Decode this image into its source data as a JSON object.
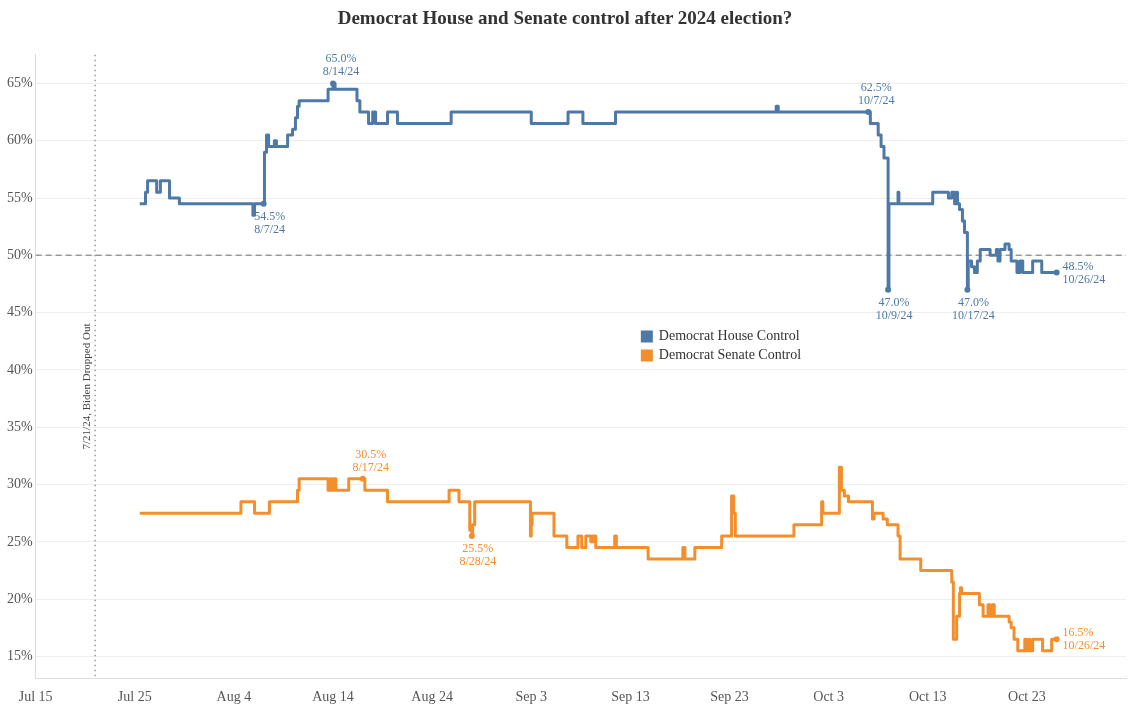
{
  "chart_data": {
    "type": "step",
    "title": "Democrat House and Senate control after 2024 election?",
    "xlim": [
      "2024-07-15",
      "2024-11-02"
    ],
    "xticks": [
      {
        "value": "2024-07-15",
        "label": "Jul 15"
      },
      {
        "value": "2024-07-25",
        "label": "Jul 25"
      },
      {
        "value": "2024-08-04",
        "label": "Aug 4"
      },
      {
        "value": "2024-08-14",
        "label": "Aug 14"
      },
      {
        "value": "2024-08-24",
        "label": "Aug 24"
      },
      {
        "value": "2024-09-03",
        "label": "Sep 3"
      },
      {
        "value": "2024-09-13",
        "label": "Sep 13"
      },
      {
        "value": "2024-09-23",
        "label": "Sep 23"
      },
      {
        "value": "2024-10-03",
        "label": "Oct 3"
      },
      {
        "value": "2024-10-13",
        "label": "Oct 13"
      },
      {
        "value": "2024-10-23",
        "label": "Oct 23"
      }
    ],
    "ylim": [
      13.1,
      67.5
    ],
    "yticks": [
      {
        "value": 15,
        "label": "15%"
      },
      {
        "value": 20,
        "label": "20%"
      },
      {
        "value": 25,
        "label": "25%"
      },
      {
        "value": 30,
        "label": "30%"
      },
      {
        "value": 35,
        "label": "35%"
      },
      {
        "value": 40,
        "label": "40%"
      },
      {
        "value": 45,
        "label": "45%"
      },
      {
        "value": 50,
        "label": "50%"
      },
      {
        "value": 55,
        "label": "55%"
      },
      {
        "value": 60,
        "label": "60%"
      },
      {
        "value": 65,
        "label": "65%"
      }
    ],
    "grid": "y",
    "legend": "center",
    "series": [
      {
        "name": "Democrat House Control",
        "color": "#4e79a7",
        "x": [
          "2024-07-25T12:00",
          "2024-07-26T02:00",
          "2024-07-26T07:00",
          "2024-07-27T05:00",
          "2024-07-27T14:00",
          "2024-07-28T12:00",
          "2024-07-29T12:00",
          "2024-08-05T22:00",
          "2024-08-06T02:00",
          "2024-08-07T00:00",
          "2024-08-07T02:00",
          "2024-08-07T07:00",
          "2024-08-07T12:00",
          "2024-08-08T02:00",
          "2024-08-08T07:00",
          "2024-08-09T10:00",
          "2024-08-09T22:00",
          "2024-08-10T05:00",
          "2024-08-10T10:00",
          "2024-08-10T14:00",
          "2024-08-13T12:00",
          "2024-08-14T00:00",
          "2024-08-14T05:00",
          "2024-08-16T10:00",
          "2024-08-16T17:00",
          "2024-08-17T14:00",
          "2024-08-18T00:00",
          "2024-08-18T07:00",
          "2024-08-19T12:00",
          "2024-08-20T12:00",
          "2024-08-25T22:00",
          "2024-09-03T00:00",
          "2024-09-06T17:00",
          "2024-09-08T05:00",
          "2024-09-11T12:00",
          "2024-09-27T17:00",
          "2024-09-27T22:00",
          "2024-10-07T00:00",
          "2024-10-07T05:00",
          "2024-10-08T00:00",
          "2024-10-08T07:00",
          "2024-10-08T14:00",
          "2024-10-09T00:00",
          "2024-10-09T02:00",
          "2024-10-10T00:00",
          "2024-10-10T02:00",
          "2024-10-13T12:00",
          "2024-10-15T02:00",
          "2024-10-15T10:00",
          "2024-10-15T17:00",
          "2024-10-15T22:00",
          "2024-10-16T00:00",
          "2024-10-16T05:00",
          "2024-10-16T12:00",
          "2024-10-16T17:00",
          "2024-10-17T00:00",
          "2024-10-17T02:00",
          "2024-10-17T10:00",
          "2024-10-17T17:00",
          "2024-10-18T00:00",
          "2024-10-18T07:00",
          "2024-10-19T07:00",
          "2024-10-19T22:00",
          "2024-10-20T02:00",
          "2024-10-20T07:00",
          "2024-10-20T19:00",
          "2024-10-21T05:00",
          "2024-10-21T10:00",
          "2024-10-22T00:00",
          "2024-10-22T07:00",
          "2024-10-22T14:00",
          "2024-10-23T14:00",
          "2024-10-24T12:00",
          "2024-10-26T00:00"
        ],
        "values": [
          54.5,
          55.5,
          56.5,
          55.5,
          56.5,
          55.0,
          54.5,
          53.5,
          54.5,
          54.5,
          59.0,
          60.5,
          59.5,
          60.0,
          59.5,
          60.5,
          61.0,
          62.0,
          63.0,
          63.5,
          64.5,
          65.0,
          64.5,
          63.5,
          62.5,
          61.5,
          62.5,
          61.5,
          62.5,
          61.5,
          62.5,
          61.5,
          62.5,
          61.5,
          62.5,
          63.0,
          62.5,
          62.5,
          61.5,
          60.5,
          59.5,
          58.5,
          47.0,
          54.5,
          55.5,
          54.5,
          55.5,
          55.0,
          55.5,
          54.5,
          55.5,
          54.5,
          54.0,
          53.0,
          52.0,
          47.0,
          49.5,
          49.0,
          48.5,
          49.5,
          50.5,
          50.0,
          50.5,
          49.5,
          50.5,
          51.0,
          50.5,
          49.5,
          48.5,
          49.5,
          48.5,
          49.5,
          48.5,
          48.5
        ]
      },
      {
        "name": "Democrat Senate Control",
        "color": "#f28e2b",
        "x": [
          "2024-07-25T12:00",
          "2024-08-04T17:00",
          "2024-08-06T02:00",
          "2024-08-07T14:00",
          "2024-08-10T10:00",
          "2024-08-10T14:00",
          "2024-08-13T12:00",
          "2024-08-13T17:00",
          "2024-08-13T22:00",
          "2024-08-14T02:00",
          "2024-08-14T07:00",
          "2024-08-15T14:00",
          "2024-08-17T00:00",
          "2024-08-17T05:00",
          "2024-08-19T12:00",
          "2024-08-25T17:00",
          "2024-08-26T17:00",
          "2024-08-27T19:00",
          "2024-08-28T00:00",
          "2024-08-28T02:00",
          "2024-08-28T07:00",
          "2024-09-02T22:00",
          "2024-09-03T00:00",
          "2024-09-03T02:00",
          "2024-09-05T07:00",
          "2024-09-06T14:00",
          "2024-09-07T17:00",
          "2024-09-08T02:00",
          "2024-09-08T12:00",
          "2024-09-09T00:00",
          "2024-09-09T05:00",
          "2024-09-09T12:00",
          "2024-09-11T10:00",
          "2024-09-11T14:00",
          "2024-09-14T19:00",
          "2024-09-18T07:00",
          "2024-09-18T12:00",
          "2024-09-19T12:00",
          "2024-09-22T05:00",
          "2024-09-23T05:00",
          "2024-09-23T10:00",
          "2024-09-23T14:00",
          "2024-09-29T12:00",
          "2024-10-02T07:00",
          "2024-10-02T10:00",
          "2024-10-04T02:00",
          "2024-10-04T07:00",
          "2024-10-04T14:00",
          "2024-10-05T00:00",
          "2024-10-07T10:00",
          "2024-10-07T14:00",
          "2024-10-08T12:00",
          "2024-10-08T22:00",
          "2024-10-10T00:00",
          "2024-10-10T05:00",
          "2024-10-12T07:00",
          "2024-10-15T10:00",
          "2024-10-15T14:00",
          "2024-10-15T22:00",
          "2024-10-16T05:00",
          "2024-10-16T07:00",
          "2024-10-16T10:00",
          "2024-10-18T05:00",
          "2024-10-18T14:00",
          "2024-10-19T02:00",
          "2024-10-19T07:00",
          "2024-10-19T12:00",
          "2024-10-19T17:00",
          "2024-10-21T05:00",
          "2024-10-21T10:00",
          "2024-10-21T17:00",
          "2024-10-22T02:00",
          "2024-10-22T19:00",
          "2024-10-23T00:00",
          "2024-10-23T05:00",
          "2024-10-23T07:00",
          "2024-10-23T14:00",
          "2024-10-24T14:00",
          "2024-10-25T12:00",
          "2024-10-26T00:00"
        ],
        "values": [
          27.5,
          28.5,
          27.5,
          28.5,
          29.5,
          30.5,
          29.5,
          30.5,
          29.5,
          30.5,
          29.5,
          30.5,
          30.5,
          29.5,
          28.5,
          29.5,
          28.5,
          26.0,
          25.5,
          26.5,
          28.5,
          25.5,
          26.5,
          27.5,
          25.5,
          24.5,
          25.5,
          24.5,
          25.5,
          25.0,
          25.5,
          24.5,
          25.5,
          24.5,
          23.5,
          24.5,
          23.5,
          24.5,
          25.5,
          29.0,
          27.5,
          25.5,
          26.5,
          28.5,
          27.5,
          31.5,
          29.5,
          29.0,
          28.5,
          27.0,
          27.5,
          27.0,
          26.5,
          25.5,
          23.5,
          22.5,
          21.5,
          16.5,
          18.5,
          20.5,
          21.0,
          20.5,
          19.5,
          18.5,
          19.5,
          18.5,
          19.5,
          18.5,
          18.0,
          17.5,
          16.5,
          15.5,
          16.5,
          15.5,
          16.5,
          15.5,
          16.5,
          15.5,
          16.5,
          16.5
        ]
      }
    ],
    "ref_lines": [
      {
        "axis": "y",
        "value": 50,
        "color": "#999999",
        "line_style": "dashed"
      },
      {
        "axis": "x",
        "value": "2024-07-21",
        "label": "7/21/24, Biden Dropped Out",
        "color": "#999999",
        "line_style": "dotted"
      }
    ],
    "annotations": [
      {
        "text": "54.5%\n8/7/24",
        "x": "2024-08-07",
        "y": 54.5
      },
      {
        "text": "65.0%\n8/14/24",
        "x": "2024-08-14",
        "y": 65.0
      },
      {
        "text": "62.5%\n10/7/24",
        "x": "2024-10-07",
        "y": 62.5
      },
      {
        "text": "47.0%\n10/9/24",
        "x": "2024-10-09",
        "y": 47.0
      },
      {
        "text": "47.0%\n10/17/24",
        "x": "2024-10-17",
        "y": 47.0
      },
      {
        "text": "48.5%\n10/26/24",
        "x": "2024-10-26",
        "y": 48.5
      },
      {
        "text": "30.5%\n8/17/24",
        "x": "2024-08-17",
        "y": 30.5
      },
      {
        "text": "25.5%\n8/28/24",
        "x": "2024-08-28",
        "y": 25.5
      },
      {
        "text": "16.5%\n10/26/24",
        "x": "2024-10-26",
        "y": 16.5
      }
    ]
  }
}
